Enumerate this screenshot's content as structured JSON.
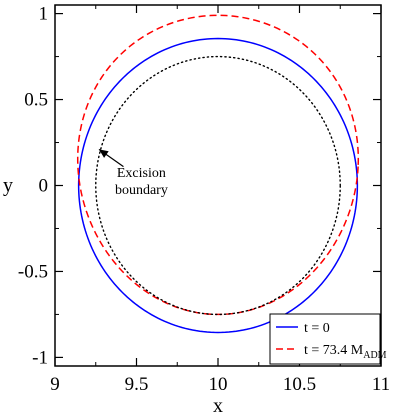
{
  "chart_data": {
    "type": "line",
    "xlabel": "x",
    "ylabel": "y",
    "xlim": [
      9,
      11
    ],
    "ylim": [
      -1.05,
      1.05
    ],
    "xticks": [
      9,
      9.5,
      10,
      10.5,
      11
    ],
    "xtick_labels": [
      "9",
      "9.5",
      "10",
      "10.5",
      "11"
    ],
    "yticks": [
      -1,
      -0.5,
      0,
      0.5,
      1
    ],
    "ytick_labels": [
      "-1",
      "-0.5",
      "0",
      "0.5",
      "1"
    ],
    "grid": false,
    "legend_position": "bottom-right",
    "series": [
      {
        "name": "t = 0",
        "legend_label": "t = 0",
        "color": "#0000ff",
        "dash": "solid",
        "shape": "circle",
        "center": [
          10,
          0
        ],
        "radii": [
          0.855,
          0.855
        ],
        "y_offset_factor": 0
      },
      {
        "name": "t = 73.4 M_ADM",
        "legend_label_main": "t = 73.4 M",
        "legend_label_sub": "ADM",
        "color": "#ff0000",
        "dash": "dashed",
        "shape": "egg",
        "center": [
          10,
          0.12
        ],
        "radii": [
          0.86,
          0.87
        ],
        "y_offset_factor": 0.1
      },
      {
        "name": "Excision boundary",
        "color": "#000000",
        "dash": "dotted",
        "shape": "circle",
        "center": [
          10,
          0
        ],
        "radii": [
          0.75,
          0.75
        ],
        "y_offset_factor": 0
      }
    ],
    "annotations": [
      {
        "lines": [
          "Excision",
          "boundary"
        ],
        "arrow_to": [
          9.27,
          0.21
        ],
        "arrow_from": [
          9.42,
          0.11
        ],
        "text_at": [
          9.53,
          0.05
        ]
      }
    ]
  }
}
